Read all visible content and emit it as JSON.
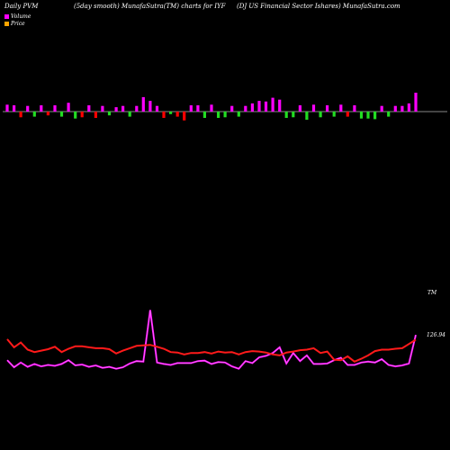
{
  "header": {
    "left": "Daily PVM",
    "mid": "(5day smooth) MunafaSutra(TM) charts for IYF",
    "right": "(DJ US Financial Sector Ishares) MunafaSutra.com"
  },
  "legend": [
    {
      "label": "Volume",
      "color": "#ff00ff"
    },
    {
      "label": "Price",
      "color": "#ffa500"
    }
  ],
  "colors": {
    "background": "#000000",
    "up_bar": "#ff00ff",
    "down_bar_red": "#ff0000",
    "down_bar_green": "#22dd22",
    "volume_line": "#ff00ff",
    "price_line": "#ff1a1a",
    "baseline": "#888888"
  },
  "chart_data": {
    "type": "bar+line",
    "bars": {
      "name": "PVM",
      "values": [
        1.1,
        1.0,
        -0.9,
        0.9,
        -0.8,
        1.0,
        -0.6,
        1.0,
        -0.8,
        1.4,
        -1.1,
        -0.9,
        1.0,
        -1.0,
        0.9,
        -0.6,
        0.7,
        0.9,
        -0.8,
        0.9,
        2.3,
        1.7,
        0.9,
        -1.0,
        -0.4,
        -0.8,
        -1.4,
        1.0,
        1.0,
        -1.0,
        1.1,
        -1.0,
        -0.9,
        0.9,
        -0.8,
        0.9,
        1.3,
        1.7,
        1.6,
        2.2,
        1.9,
        -1.0,
        -0.9,
        1.0,
        -1.3,
        1.1,
        -0.9,
        1.0,
        -0.8,
        1.1,
        -0.8,
        1.0,
        -1.1,
        -1.1,
        -1.2,
        0.9,
        -0.8,
        0.9,
        0.9,
        1.3,
        3.0
      ],
      "colors": [
        "m",
        "m",
        "r",
        "m",
        "g",
        "m",
        "r",
        "m",
        "g",
        "m",
        "g",
        "r",
        "m",
        "r",
        "m",
        "g",
        "m",
        "m",
        "g",
        "m",
        "m",
        "m",
        "m",
        "r",
        "g",
        "r",
        "r",
        "m",
        "m",
        "g",
        "m",
        "g",
        "g",
        "m",
        "g",
        "m",
        "m",
        "m",
        "m",
        "m",
        "m",
        "g",
        "g",
        "m",
        "g",
        "m",
        "g",
        "m",
        "g",
        "m",
        "r",
        "m",
        "g",
        "g",
        "g",
        "m",
        "g",
        "m",
        "m",
        "m",
        "m"
      ]
    },
    "volume_line": [
      122.0,
      120.5,
      121.5,
      120.6,
      121.2,
      120.7,
      121.0,
      120.8,
      121.2,
      122.0,
      120.9,
      121.1,
      120.6,
      120.9,
      120.4,
      120.6,
      120.2,
      120.5,
      121.3,
      121.8,
      121.7,
      132.5,
      121.5,
      121.2,
      121.0,
      121.4,
      121.4,
      121.4,
      121.8,
      121.9,
      121.2,
      121.6,
      121.5,
      120.7,
      120.2,
      121.8,
      121.4,
      122.6,
      122.9,
      123.5,
      124.7,
      121.3,
      123.5,
      121.8,
      123.0,
      121.2,
      121.2,
      121.3,
      122.0,
      122.5,
      121.0,
      121.0,
      121.5,
      121.7,
      121.5,
      122.2,
      121.0,
      120.7,
      120.9,
      121.3,
      127.3
    ],
    "price_line": [
      126.4,
      124.7,
      125.7,
      124.2,
      123.7,
      124.0,
      124.3,
      124.8,
      123.7,
      124.4,
      124.9,
      124.9,
      124.7,
      124.5,
      124.5,
      124.3,
      123.4,
      124.0,
      124.5,
      125.0,
      125.1,
      125.2,
      124.8,
      124.4,
      123.7,
      123.6,
      123.2,
      123.5,
      123.5,
      123.7,
      123.4,
      123.8,
      123.6,
      123.7,
      123.2,
      123.7,
      123.9,
      123.8,
      123.6,
      123.2,
      123.0,
      123.6,
      123.8,
      124.1,
      124.2,
      124.5,
      123.5,
      123.8,
      122.1,
      122.0,
      122.8,
      121.7,
      122.3,
      123.0,
      123.9,
      124.2,
      124.2,
      124.4,
      124.5,
      125.4,
      126.3
    ],
    "labels": {
      "volume_end": "TM",
      "price_end": "126.94"
    }
  }
}
